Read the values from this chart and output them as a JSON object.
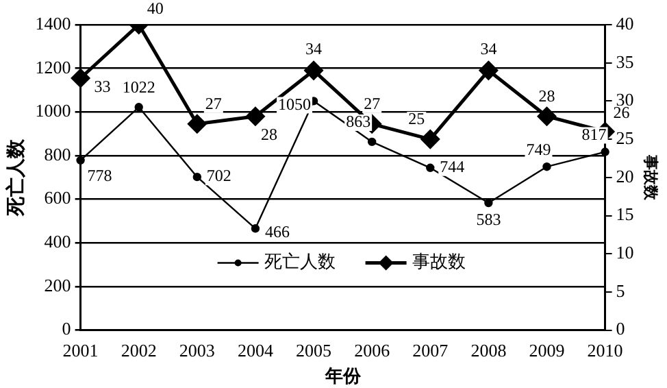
{
  "chart_data": {
    "type": "line",
    "xlabel": "年份",
    "ylabel": "死亡人数",
    "y2label": "事故数",
    "categories": [
      "2001",
      "2002",
      "2003",
      "2004",
      "2005",
      "2006",
      "2007",
      "2008",
      "2009",
      "2010"
    ],
    "series": [
      {
        "name": "死亡人数",
        "color": "#000000",
        "marker": "circle",
        "values": [
          778,
          1022,
          702,
          466,
          1050,
          863,
          744,
          583,
          749,
          817
        ]
      },
      {
        "name": "事故数",
        "color": "#000000",
        "marker": "diamond",
        "axis": "y2",
        "values": [
          33,
          40,
          27,
          28,
          34,
          27,
          25,
          34,
          28,
          26
        ]
      }
    ],
    "ylim": [
      0,
      1400
    ],
    "yticks": [
      0,
      200,
      400,
      600,
      800,
      1000,
      1200,
      1400
    ],
    "y2lim": [
      0,
      40
    ],
    "y2ticks": [
      0,
      5,
      10,
      15,
      20,
      25,
      30,
      35,
      40
    ],
    "grid": "y",
    "legend": "bottom",
    "data_labels": true
  }
}
